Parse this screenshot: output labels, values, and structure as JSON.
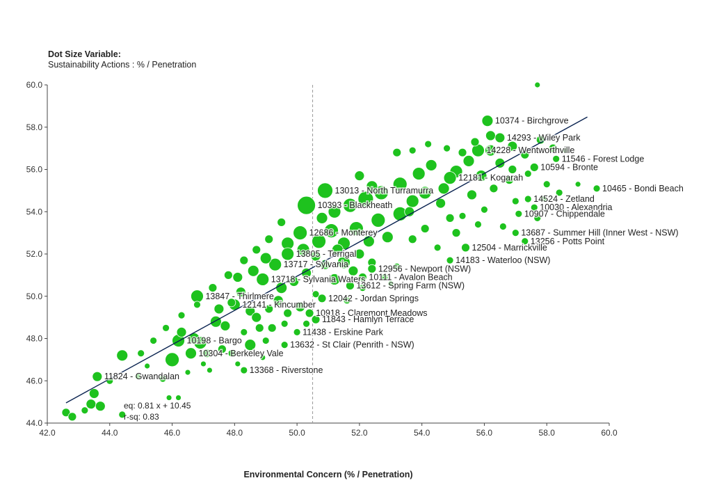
{
  "dot_size": {
    "title": "Dot Size Variable:",
    "value": "Sustainability Actions : % / Penetration"
  },
  "colors": {
    "dot": "#1ec21e",
    "dot_stroke": "#ffffff",
    "regression": "#0a2350",
    "reference": "#999999",
    "axis": "#444444"
  },
  "chart_data": {
    "type": "scatter",
    "xlabel": "Environmental Concern (% / Penetration)",
    "ylabel": "",
    "xlim": [
      42,
      60
    ],
    "ylim": [
      44,
      60
    ],
    "xticks": [
      "42.0",
      "44.0",
      "46.0",
      "48.0",
      "50.0",
      "52.0",
      "54.0",
      "56.0",
      "58.0",
      "60.0"
    ],
    "yticks": [
      "44.0",
      "46.0",
      "48.0",
      "50.0",
      "52.0",
      "54.0",
      "56.0",
      "58.0",
      "60.0"
    ],
    "reference_x": 50.5,
    "regression": {
      "slope": 0.81,
      "intercept": 10.45,
      "x_range": [
        42.6,
        59.3
      ],
      "eq_label": "eq: 0.81 x + 10.45",
      "r2_label": "r-sq: 0.83"
    },
    "labeled_points": [
      {
        "label": "10374 - Birchgrove",
        "x": 56.1,
        "y": 58.3,
        "size": 8
      },
      {
        "label": "14293 - Wiley Park",
        "x": 56.5,
        "y": 57.5,
        "size": 7
      },
      {
        "label": "14228 - Wentworthville",
        "x": 55.8,
        "y": 56.9,
        "size": 9
      },
      {
        "label": "11546 - Forest Lodge",
        "x": 58.3,
        "y": 56.5,
        "size": 5
      },
      {
        "label": "10594 - Bronte",
        "x": 57.6,
        "y": 56.1,
        "size": 6
      },
      {
        "label": "10465 - Bondi Beach",
        "x": 59.6,
        "y": 55.1,
        "size": 5
      },
      {
        "label": "12181 - Kogarah",
        "x": 54.9,
        "y": 55.6,
        "size": 9
      },
      {
        "label": "13013 - North Turramurra",
        "x": 50.9,
        "y": 55.0,
        "size": 11
      },
      {
        "label": "14524 - Zetland",
        "x": 57.4,
        "y": 54.6,
        "size": 5
      },
      {
        "label": "10030 - Alexandria",
        "x": 57.6,
        "y": 54.2,
        "size": 5
      },
      {
        "label": "10907 - Chippendale",
        "x": 57.1,
        "y": 53.9,
        "size": 5
      },
      {
        "label": "10393 - Blackheath",
        "x": 50.3,
        "y": 54.3,
        "size": 13
      },
      {
        "label": "12686 - Monterey",
        "x": 50.1,
        "y": 53.0,
        "size": 10
      },
      {
        "label": "13687 - Summer Hill (Inner West - NSW)",
        "x": 57.0,
        "y": 53.0,
        "size": 5
      },
      {
        "label": "13256 - Potts Point",
        "x": 57.3,
        "y": 52.6,
        "size": 5
      },
      {
        "label": "12504 - Marrickville",
        "x": 55.4,
        "y": 52.3,
        "size": 6
      },
      {
        "label": "13805 - Terrigal",
        "x": 49.7,
        "y": 52.0,
        "size": 9
      },
      {
        "label": "14183 - Waterloo (NSW)",
        "x": 54.9,
        "y": 51.7,
        "size": 5
      },
      {
        "label": "13717 - Sylvania",
        "x": 49.3,
        "y": 51.5,
        "size": 9
      },
      {
        "label": "12956 - Newport (NSW)",
        "x": 52.4,
        "y": 51.3,
        "size": 6
      },
      {
        "label": "10111 - Avalon Beach",
        "x": 52.1,
        "y": 50.9,
        "size": 6
      },
      {
        "label": "13718 - Sylvania Waters",
        "x": 48.9,
        "y": 50.8,
        "size": 9
      },
      {
        "label": "13612 - Spring Farm (NSW)",
        "x": 51.7,
        "y": 50.5,
        "size": 6
      },
      {
        "label": "13847 - Thirlmere",
        "x": 46.8,
        "y": 50.0,
        "size": 9
      },
      {
        "label": "12042 - Jordan Springs",
        "x": 50.8,
        "y": 49.9,
        "size": 6
      },
      {
        "label": "12141 - Kincumber",
        "x": 48.0,
        "y": 49.6,
        "size": 8
      },
      {
        "label": "10918 - Claremont Meadows",
        "x": 50.4,
        "y": 49.2,
        "size": 6
      },
      {
        "label": "11843 - Hamlyn Terrace",
        "x": 50.6,
        "y": 48.9,
        "size": 6
      },
      {
        "label": "11438 - Erskine Park",
        "x": 50.0,
        "y": 48.3,
        "size": 5
      },
      {
        "label": "10198 - Bargo",
        "x": 46.2,
        "y": 47.9,
        "size": 9
      },
      {
        "label": "13632 - St Clair (Penrith - NSW)",
        "x": 49.6,
        "y": 47.7,
        "size": 5
      },
      {
        "label": "10304 - Berkeley Vale",
        "x": 46.6,
        "y": 47.3,
        "size": 8
      },
      {
        "label": "13368 - Riverstone",
        "x": 48.3,
        "y": 46.5,
        "size": 5
      },
      {
        "label": "11824 - Gwandalan",
        "x": 43.6,
        "y": 46.2,
        "size": 7
      }
    ],
    "other_points": [
      {
        "x": 57.7,
        "y": 60.0,
        "size": 4
      },
      {
        "x": 42.6,
        "y": 44.5,
        "size": 6
      },
      {
        "x": 42.8,
        "y": 44.3,
        "size": 6
      },
      {
        "x": 43.4,
        "y": 44.9,
        "size": 7
      },
      {
        "x": 43.7,
        "y": 44.8,
        "size": 7
      },
      {
        "x": 43.5,
        "y": 45.4,
        "size": 7
      },
      {
        "x": 43.2,
        "y": 44.6,
        "size": 5
      },
      {
        "x": 44.4,
        "y": 44.4,
        "size": 5
      },
      {
        "x": 44.4,
        "y": 47.2,
        "size": 8
      },
      {
        "x": 44.0,
        "y": 46.0,
        "size": 5
      },
      {
        "x": 44.9,
        "y": 46.2,
        "size": 4
      },
      {
        "x": 45.2,
        "y": 46.7,
        "size": 4
      },
      {
        "x": 45.7,
        "y": 46.1,
        "size": 5
      },
      {
        "x": 46.2,
        "y": 45.2,
        "size": 4
      },
      {
        "x": 45.9,
        "y": 45.2,
        "size": 4
      },
      {
        "x": 46.0,
        "y": 47.0,
        "size": 10
      },
      {
        "x": 46.3,
        "y": 48.3,
        "size": 7
      },
      {
        "x": 46.7,
        "y": 48.0,
        "size": 8
      },
      {
        "x": 46.9,
        "y": 47.8,
        "size": 9
      },
      {
        "x": 47.1,
        "y": 47.3,
        "size": 6
      },
      {
        "x": 47.0,
        "y": 46.8,
        "size": 4
      },
      {
        "x": 47.4,
        "y": 48.8,
        "size": 8
      },
      {
        "x": 47.7,
        "y": 48.6,
        "size": 7
      },
      {
        "x": 47.6,
        "y": 47.5,
        "size": 6
      },
      {
        "x": 47.9,
        "y": 47.3,
        "size": 5
      },
      {
        "x": 48.1,
        "y": 46.8,
        "size": 4
      },
      {
        "x": 48.5,
        "y": 47.7,
        "size": 8
      },
      {
        "x": 48.3,
        "y": 48.3,
        "size": 5
      },
      {
        "x": 48.8,
        "y": 48.5,
        "size": 6
      },
      {
        "x": 49.0,
        "y": 47.9,
        "size": 5
      },
      {
        "x": 49.2,
        "y": 48.5,
        "size": 6
      },
      {
        "x": 47.5,
        "y": 49.4,
        "size": 7
      },
      {
        "x": 47.9,
        "y": 49.7,
        "size": 6
      },
      {
        "x": 48.2,
        "y": 50.2,
        "size": 7
      },
      {
        "x": 48.5,
        "y": 49.3,
        "size": 7
      },
      {
        "x": 48.7,
        "y": 49.0,
        "size": 7
      },
      {
        "x": 49.1,
        "y": 49.4,
        "size": 6
      },
      {
        "x": 49.4,
        "y": 49.8,
        "size": 7
      },
      {
        "x": 49.7,
        "y": 49.2,
        "size": 6
      },
      {
        "x": 50.1,
        "y": 49.5,
        "size": 7
      },
      {
        "x": 48.1,
        "y": 50.9,
        "size": 7
      },
      {
        "x": 48.6,
        "y": 51.2,
        "size": 8
      },
      {
        "x": 49.0,
        "y": 51.8,
        "size": 8
      },
      {
        "x": 49.5,
        "y": 50.4,
        "size": 8
      },
      {
        "x": 49.9,
        "y": 50.7,
        "size": 7
      },
      {
        "x": 50.3,
        "y": 51.1,
        "size": 7
      },
      {
        "x": 50.6,
        "y": 50.1,
        "size": 5
      },
      {
        "x": 50.9,
        "y": 51.5,
        "size": 7
      },
      {
        "x": 51.2,
        "y": 50.8,
        "size": 8
      },
      {
        "x": 51.5,
        "y": 51.6,
        "size": 9
      },
      {
        "x": 49.7,
        "y": 52.5,
        "size": 9
      },
      {
        "x": 50.2,
        "y": 52.2,
        "size": 9
      },
      {
        "x": 50.7,
        "y": 52.6,
        "size": 10
      },
      {
        "x": 51.1,
        "y": 53.1,
        "size": 10
      },
      {
        "x": 51.5,
        "y": 52.5,
        "size": 9
      },
      {
        "x": 51.9,
        "y": 53.2,
        "size": 10
      },
      {
        "x": 52.3,
        "y": 52.6,
        "size": 8
      },
      {
        "x": 52.6,
        "y": 53.6,
        "size": 10
      },
      {
        "x": 52.9,
        "y": 52.8,
        "size": 8
      },
      {
        "x": 53.3,
        "y": 53.9,
        "size": 10
      },
      {
        "x": 52.0,
        "y": 52.0,
        "size": 7
      },
      {
        "x": 52.4,
        "y": 51.6,
        "size": 6
      },
      {
        "x": 51.7,
        "y": 54.3,
        "size": 10
      },
      {
        "x": 52.2,
        "y": 54.6,
        "size": 11
      },
      {
        "x": 52.7,
        "y": 54.9,
        "size": 10
      },
      {
        "x": 53.3,
        "y": 55.3,
        "size": 10
      },
      {
        "x": 53.7,
        "y": 54.5,
        "size": 9
      },
      {
        "x": 54.1,
        "y": 54.9,
        "size": 9
      },
      {
        "x": 53.9,
        "y": 55.8,
        "size": 9
      },
      {
        "x": 54.3,
        "y": 56.2,
        "size": 8
      },
      {
        "x": 54.7,
        "y": 55.1,
        "size": 8
      },
      {
        "x": 55.1,
        "y": 55.9,
        "size": 9
      },
      {
        "x": 55.5,
        "y": 56.4,
        "size": 8
      },
      {
        "x": 55.9,
        "y": 55.7,
        "size": 8
      },
      {
        "x": 56.2,
        "y": 56.9,
        "size": 8
      },
      {
        "x": 56.5,
        "y": 56.3,
        "size": 7
      },
      {
        "x": 56.9,
        "y": 57.1,
        "size": 7
      },
      {
        "x": 57.3,
        "y": 56.7,
        "size": 6
      },
      {
        "x": 57.8,
        "y": 57.4,
        "size": 6
      },
      {
        "x": 58.2,
        "y": 57.0,
        "size": 6
      },
      {
        "x": 56.8,
        "y": 55.5,
        "size": 6
      },
      {
        "x": 56.3,
        "y": 55.1,
        "size": 6
      },
      {
        "x": 57.0,
        "y": 54.5,
        "size": 5
      },
      {
        "x": 56.0,
        "y": 54.1,
        "size": 5
      },
      {
        "x": 55.3,
        "y": 53.8,
        "size": 5
      },
      {
        "x": 55.8,
        "y": 53.4,
        "size": 5
      },
      {
        "x": 56.6,
        "y": 53.3,
        "size": 5
      },
      {
        "x": 55.1,
        "y": 53.0,
        "size": 6
      },
      {
        "x": 54.5,
        "y": 52.3,
        "size": 5
      },
      {
        "x": 54.1,
        "y": 53.2,
        "size": 6
      },
      {
        "x": 53.7,
        "y": 52.7,
        "size": 6
      },
      {
        "x": 53.2,
        "y": 51.4,
        "size": 5
      },
      {
        "x": 52.8,
        "y": 50.9,
        "size": 5
      },
      {
        "x": 58.4,
        "y": 54.9,
        "size": 5
      },
      {
        "x": 58.0,
        "y": 55.3,
        "size": 5
      },
      {
        "x": 57.7,
        "y": 53.7,
        "size": 5
      },
      {
        "x": 56.2,
        "y": 57.6,
        "size": 7
      },
      {
        "x": 55.7,
        "y": 57.3,
        "size": 6
      },
      {
        "x": 55.3,
        "y": 56.8,
        "size": 6
      },
      {
        "x": 54.8,
        "y": 57.0,
        "size": 5
      },
      {
        "x": 54.2,
        "y": 57.2,
        "size": 5
      },
      {
        "x": 53.2,
        "y": 56.8,
        "size": 6
      },
      {
        "x": 53.7,
        "y": 56.9,
        "size": 5
      },
      {
        "x": 52.4,
        "y": 55.2,
        "size": 8
      },
      {
        "x": 52.0,
        "y": 55.7,
        "size": 7
      },
      {
        "x": 51.2,
        "y": 54.0,
        "size": 9
      },
      {
        "x": 50.8,
        "y": 53.7,
        "size": 8
      },
      {
        "x": 49.5,
        "y": 53.5,
        "size": 6
      },
      {
        "x": 49.1,
        "y": 52.7,
        "size": 6
      },
      {
        "x": 48.7,
        "y": 52.2,
        "size": 6
      },
      {
        "x": 48.3,
        "y": 51.7,
        "size": 6
      },
      {
        "x": 47.8,
        "y": 51.0,
        "size": 6
      },
      {
        "x": 47.3,
        "y": 50.4,
        "size": 6
      },
      {
        "x": 46.8,
        "y": 49.6,
        "size": 5
      },
      {
        "x": 46.3,
        "y": 49.1,
        "size": 5
      },
      {
        "x": 45.8,
        "y": 48.5,
        "size": 5
      },
      {
        "x": 45.4,
        "y": 47.9,
        "size": 5
      },
      {
        "x": 45.0,
        "y": 47.3,
        "size": 5
      },
      {
        "x": 50.6,
        "y": 51.9,
        "size": 7
      },
      {
        "x": 51.3,
        "y": 52.2,
        "size": 8
      },
      {
        "x": 51.8,
        "y": 51.2,
        "size": 7
      },
      {
        "x": 52.1,
        "y": 50.4,
        "size": 5
      },
      {
        "x": 53.6,
        "y": 54.0,
        "size": 7
      },
      {
        "x": 54.6,
        "y": 54.4,
        "size": 7
      },
      {
        "x": 54.9,
        "y": 53.7,
        "size": 6
      },
      {
        "x": 55.6,
        "y": 54.8,
        "size": 7
      },
      {
        "x": 56.9,
        "y": 56.0,
        "size": 6
      },
      {
        "x": 57.4,
        "y": 55.8,
        "size": 5
      },
      {
        "x": 58.6,
        "y": 56.9,
        "size": 4
      },
      {
        "x": 59.0,
        "y": 55.3,
        "size": 4
      },
      {
        "x": 57.9,
        "y": 54.6,
        "size": 4
      },
      {
        "x": 53.0,
        "y": 50.6,
        "size": 4
      },
      {
        "x": 51.6,
        "y": 49.8,
        "size": 5
      },
      {
        "x": 50.3,
        "y": 48.7,
        "size": 5
      },
      {
        "x": 49.6,
        "y": 48.7,
        "size": 5
      },
      {
        "x": 48.9,
        "y": 47.1,
        "size": 4
      },
      {
        "x": 47.2,
        "y": 46.5,
        "size": 4
      },
      {
        "x": 46.5,
        "y": 46.4,
        "size": 4
      }
    ]
  }
}
